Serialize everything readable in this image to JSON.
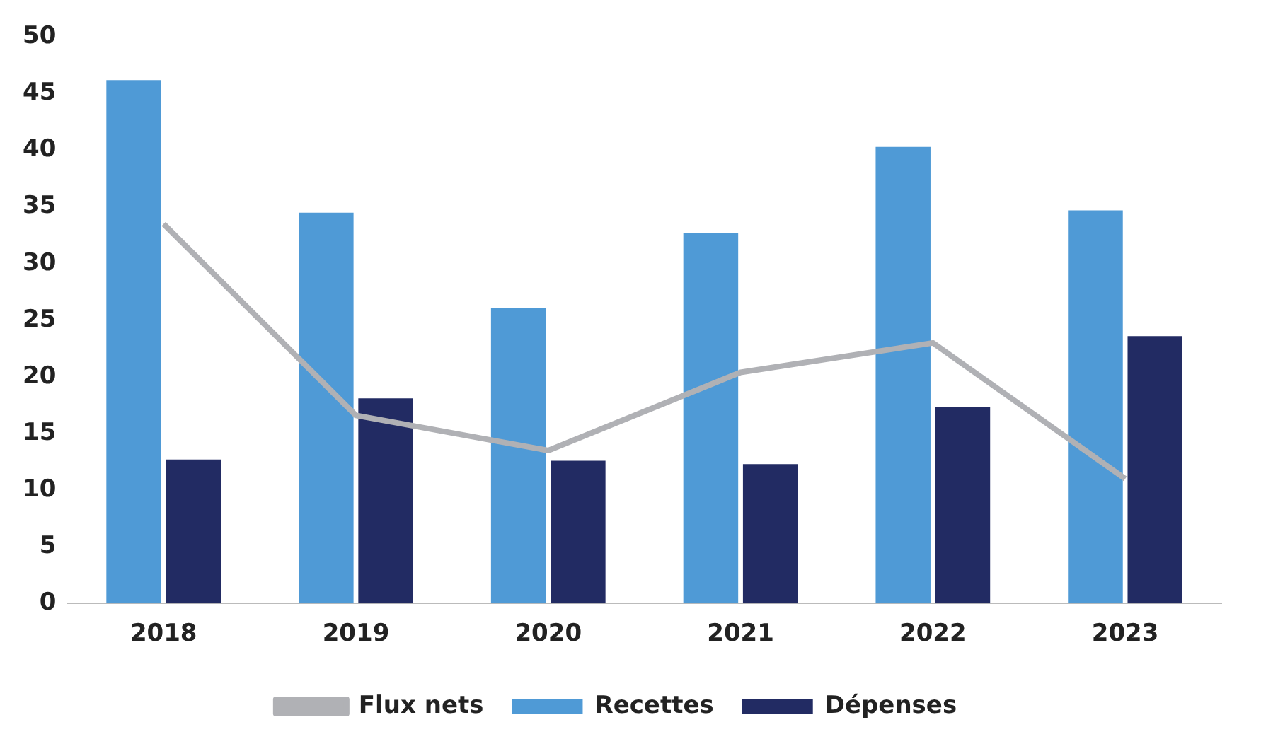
{
  "chart_data": {
    "type": "bar",
    "categories": [
      "2018",
      "2019",
      "2020",
      "2021",
      "2022",
      "2023"
    ],
    "series": [
      {
        "name": "Recettes",
        "color": "#4f9ad6",
        "values": [
          46.2,
          34.5,
          26.1,
          32.7,
          40.3,
          34.7
        ]
      },
      {
        "name": "Dépenses",
        "color": "#222b63",
        "values": [
          12.7,
          18.1,
          12.6,
          12.3,
          17.3,
          23.6
        ]
      },
      {
        "name": "Flux nets",
        "type": "line",
        "color": "#b0b1b5",
        "values": [
          33.5,
          16.6,
          13.5,
          20.4,
          23.0,
          11.0
        ],
        "marker": "none"
      }
    ],
    "ylim": [
      0,
      50
    ],
    "yticks": [
      0,
      5,
      10,
      15,
      20,
      25,
      30,
      35,
      40,
      45,
      50
    ],
    "grid": false,
    "legend": "bottom"
  }
}
